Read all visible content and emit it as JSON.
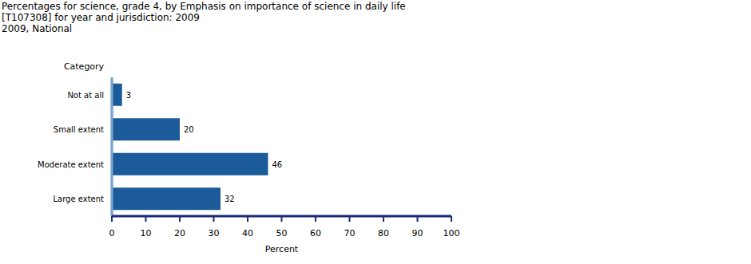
{
  "chart_data": {
    "type": "bar",
    "title": "Percentages for science, grade 4, by Emphasis on importance of science in daily life",
    "subtitle": [
      "[T107308] for year and jurisdiction: 2009",
      "2009, National"
    ],
    "y_label": "Category",
    "x_label": "Percent",
    "categories": [
      "Not at all",
      "Small extent",
      "Moderate extent",
      "Large extent"
    ],
    "values": [
      3,
      20,
      46,
      32
    ],
    "color": "#1b5b99",
    "orientation": "horizontal",
    "xlim": [
      0,
      100
    ],
    "xticks": [
      0,
      10,
      20,
      30,
      40,
      50,
      60,
      70,
      80,
      90,
      100
    ],
    "data_labels": true,
    "grid": false
  }
}
